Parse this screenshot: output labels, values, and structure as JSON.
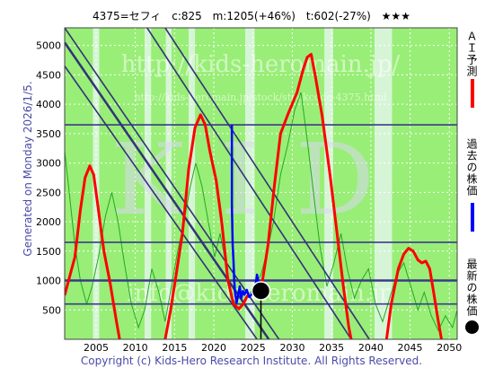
{
  "header": {
    "code_name": "4375=セフィ",
    "close": "c:825",
    "max": "m:1205(+46%)",
    "min": "t:602(-27%)",
    "stars": "★★★"
  },
  "side_label": "Generated on Monday 2026/1/5.",
  "footer": "Copyright (c) Kids-Hero Research Institute. All Rights Reserved.",
  "watermarks": {
    "url": "http://kids-heromain.jp/",
    "page": "http://kids-heromain.jp/stock/stockcode-4375.html",
    "big": "KID",
    "mail": "info@kids-heromain.jp"
  },
  "legend": [
    {
      "label": "ＡＩ予測",
      "color": "#ff0000"
    },
    {
      "label": "過去の株価",
      "color": "#0000ff"
    },
    {
      "label": "最新の株価",
      "color": "#000000"
    }
  ],
  "colors": {
    "band_green": "#99ee77",
    "band_light": "#d6f5d6",
    "band_white": "#ffffff",
    "ai": "#ff0000",
    "past": "#0000ff",
    "trend": "#333377",
    "level": "#3a3a8a",
    "osc": "#22aa22"
  },
  "chart_data": {
    "type": "line",
    "xlim": [
      2001,
      2051
    ],
    "ylim": [
      0,
      5300
    ],
    "x_ticks": [
      2005,
      2010,
      2015,
      2020,
      2025,
      2030,
      2035,
      2040,
      2045,
      2050
    ],
    "y_ticks": [
      500,
      1000,
      1500,
      2000,
      2500,
      3000,
      3500,
      4000,
      4500,
      5000
    ],
    "horizontal_levels": [
      3650,
      1650,
      1000,
      600
    ],
    "latest": {
      "x": 2026.0,
      "y": 825
    },
    "bands": [
      {
        "from": 2001,
        "to": 2004.6,
        "kind": "green"
      },
      {
        "from": 2004.6,
        "to": 2005.4,
        "kind": "light"
      },
      {
        "from": 2005.4,
        "to": 2011.2,
        "kind": "green"
      },
      {
        "from": 2011.2,
        "to": 2012.0,
        "kind": "light"
      },
      {
        "from": 2012.0,
        "to": 2013.9,
        "kind": "green"
      },
      {
        "from": 2013.9,
        "to": 2014.6,
        "kind": "light"
      },
      {
        "from": 2014.6,
        "to": 2016.8,
        "kind": "green"
      },
      {
        "from": 2016.8,
        "to": 2017.6,
        "kind": "light"
      },
      {
        "from": 2017.6,
        "to": 2024.0,
        "kind": "green"
      },
      {
        "from": 2024.0,
        "to": 2025.2,
        "kind": "light"
      },
      {
        "from": 2025.2,
        "to": 2034.1,
        "kind": "green"
      },
      {
        "from": 2034.1,
        "to": 2035.2,
        "kind": "light"
      },
      {
        "from": 2035.2,
        "to": 2040.5,
        "kind": "green"
      },
      {
        "from": 2040.5,
        "to": 2042.7,
        "kind": "light"
      },
      {
        "from": 2042.7,
        "to": 2051,
        "kind": "green"
      }
    ],
    "trend_lines": [
      [
        [
          2001,
          5300
        ],
        [
          2028.3,
          0
        ]
      ],
      [
        [
          2001,
          5050
        ],
        [
          2027.0,
          0
        ]
      ],
      [
        [
          2001,
          4650
        ],
        [
          2025.5,
          0
        ]
      ],
      [
        [
          2011.5,
          5300
        ],
        [
          2037.5,
          0
        ]
      ],
      [
        [
          2013.8,
          5300
        ],
        [
          2039.8,
          0
        ]
      ]
    ],
    "series": [
      {
        "name": "ＡＩ予測",
        "color": "#ff0000",
        "segments": [
          [
            [
              2001,
              750
            ],
            [
              2001.6,
              1050
            ],
            [
              2002.3,
              1400
            ],
            [
              2003.0,
              2200
            ],
            [
              2003.6,
              2750
            ],
            [
              2004.2,
              2950
            ],
            [
              2004.7,
              2800
            ],
            [
              2005.3,
              2200
            ],
            [
              2006.0,
              1500
            ],
            [
              2006.8,
              950
            ],
            [
              2007.6,
              300
            ],
            [
              2008.0,
              0
            ]
          ],
          [
            [
              2013.8,
              0
            ],
            [
              2014.5,
              500
            ],
            [
              2015.2,
              1100
            ],
            [
              2016.0,
              1800
            ],
            [
              2016.8,
              2900
            ],
            [
              2017.6,
              3600
            ],
            [
              2018.3,
              3820
            ],
            [
              2018.9,
              3650
            ],
            [
              2019.5,
              3200
            ],
            [
              2020.3,
              2700
            ],
            [
              2021.0,
              2000
            ],
            [
              2021.8,
              1000
            ],
            [
              2022.5,
              600
            ],
            [
              2023.2,
              520
            ],
            [
              2023.8,
              610
            ],
            [
              2024.3,
              750
            ]
          ],
          [
            [
              2025.5,
              750
            ],
            [
              2026.2,
              1000
            ],
            [
              2026.9,
              1600
            ],
            [
              2027.7,
              2600
            ],
            [
              2028.5,
              3500
            ],
            [
              2029.5,
              3850
            ],
            [
              2030.6,
              4200
            ],
            [
              2031.4,
              4600
            ],
            [
              2031.9,
              4800
            ],
            [
              2032.4,
              4850
            ],
            [
              2032.9,
              4500
            ],
            [
              2033.8,
              3800
            ],
            [
              2034.8,
              2800
            ],
            [
              2035.7,
              1800
            ],
            [
              2036.5,
              900
            ],
            [
              2037.2,
              200
            ],
            [
              2037.5,
              0
            ]
          ],
          [
            [
              2042.0,
              0
            ],
            [
              2042.6,
              600
            ],
            [
              2043.5,
              1200
            ],
            [
              2044.2,
              1450
            ],
            [
              2044.8,
              1550
            ],
            [
              2045.4,
              1500
            ],
            [
              2046.0,
              1350
            ],
            [
              2046.5,
              1300
            ],
            [
              2047.0,
              1330
            ],
            [
              2047.5,
              1200
            ],
            [
              2048.0,
              800
            ],
            [
              2048.6,
              300
            ],
            [
              2049.0,
              0
            ]
          ]
        ]
      },
      {
        "name": "過去の株価",
        "color": "#0000ff",
        "points": [
          [
            2022.3,
            3650
          ],
          [
            2022.3,
            2300
          ],
          [
            2022.4,
            1600
          ],
          [
            2022.5,
            1350
          ],
          [
            2022.6,
            1000
          ],
          [
            2022.7,
            800
          ],
          [
            2022.9,
            620
          ],
          [
            2023.1,
            750
          ],
          [
            2023.3,
            900
          ],
          [
            2023.5,
            700
          ],
          [
            2023.7,
            820
          ],
          [
            2023.9,
            760
          ],
          [
            2024.2,
            840
          ],
          [
            2024.5,
            720
          ],
          [
            2024.9,
            780
          ],
          [
            2025.3,
            900
          ],
          [
            2025.5,
            1100
          ],
          [
            2025.7,
            950
          ],
          [
            2026.0,
            825
          ]
        ]
      },
      {
        "name": "oscillator",
        "color": "#22aa22",
        "points": [
          [
            2001,
            3200
          ],
          [
            2001.5,
            2600
          ],
          [
            2002.3,
            1600
          ],
          [
            2003.0,
            1000
          ],
          [
            2003.8,
            600
          ],
          [
            2004.5,
            900
          ],
          [
            2005.3,
            1400
          ],
          [
            2006.2,
            2100
          ],
          [
            2007.0,
            2500
          ],
          [
            2007.8,
            2000
          ],
          [
            2008.6,
            1300
          ],
          [
            2009.5,
            600
          ],
          [
            2010.4,
            200
          ],
          [
            2011.2,
            500
          ],
          [
            2012.1,
            1200
          ],
          [
            2013.0,
            800
          ],
          [
            2013.8,
            300
          ],
          [
            2014.6,
            900
          ],
          [
            2015.4,
            1500
          ],
          [
            2016.2,
            2000
          ],
          [
            2017.0,
            2600
          ],
          [
            2017.7,
            3000
          ],
          [
            2018.5,
            2600
          ],
          [
            2019.3,
            2000
          ],
          [
            2020.1,
            1400
          ],
          [
            2020.8,
            1800
          ],
          [
            2021.5,
            1300
          ],
          [
            2022.4,
            700
          ],
          [
            2023.2,
            500
          ],
          [
            2024.0,
            700
          ],
          [
            2025.0,
            850
          ],
          [
            2026.0,
            1100
          ],
          [
            2026.8,
            1500
          ],
          [
            2027.6,
            2000
          ],
          [
            2028.5,
            2800
          ],
          [
            2029.4,
            3300
          ],
          [
            2030.3,
            3900
          ],
          [
            2031.1,
            4200
          ],
          [
            2031.8,
            3500
          ],
          [
            2032.6,
            2600
          ],
          [
            2033.5,
            1600
          ],
          [
            2034.4,
            900
          ],
          [
            2035.3,
            1300
          ],
          [
            2036.2,
            1800
          ],
          [
            2037.0,
            1200
          ],
          [
            2037.9,
            700
          ],
          [
            2038.8,
            1000
          ],
          [
            2039.7,
            1200
          ],
          [
            2040.6,
            600
          ],
          [
            2041.5,
            300
          ],
          [
            2042.4,
            700
          ],
          [
            2043.3,
            1100
          ],
          [
            2044.2,
            1300
          ],
          [
            2045.1,
            900
          ],
          [
            2046.0,
            500
          ],
          [
            2046.8,
            800
          ],
          [
            2047.7,
            400
          ],
          [
            2048.6,
            150
          ],
          [
            2049.5,
            400
          ],
          [
            2050.4,
            200
          ],
          [
            2051,
            500
          ]
        ]
      }
    ]
  }
}
